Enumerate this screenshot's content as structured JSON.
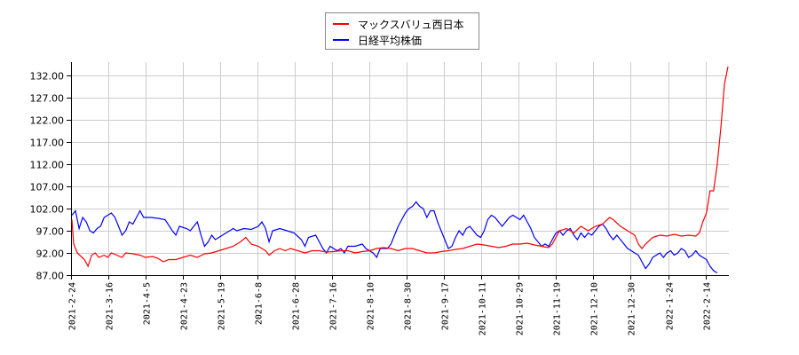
{
  "chart_data": {
    "type": "line",
    "title": "",
    "xlabel": "",
    "ylabel": "",
    "ylim": [
      87.0,
      134.0
    ],
    "y_ticks": [
      "87.00",
      "92.00",
      "97.00",
      "102.00",
      "107.00",
      "112.00",
      "117.00",
      "122.00",
      "127.00",
      "132.00"
    ],
    "x_ticks": [
      "2021-2-24",
      "2021-3-16",
      "2021-4-5",
      "2021-4-23",
      "2021-5-19",
      "2021-6-8",
      "2021-6-28",
      "2021-7-16",
      "2021-8-10",
      "2021-8-30",
      "2021-9-17",
      "2021-10-11",
      "2021-10-29",
      "2021-11-19",
      "2021-12-10",
      "2021-12-30",
      "2022-1-24",
      "2022-2-14"
    ],
    "grid": true,
    "legend_position": "top-center",
    "series": [
      {
        "name": "マックスバリュ西日本",
        "color": "#ff0000",
        "points": [
          [
            0,
            99.5
          ],
          [
            1,
            94
          ],
          [
            3,
            92
          ],
          [
            7,
            90.5
          ],
          [
            9,
            89
          ],
          [
            11,
            91.5
          ],
          [
            13,
            92
          ],
          [
            15,
            91
          ],
          [
            18,
            91.5
          ],
          [
            20,
            91
          ],
          [
            22,
            92
          ],
          [
            25,
            91.5
          ],
          [
            28,
            91
          ],
          [
            30,
            92
          ],
          [
            34,
            91.8
          ],
          [
            38,
            91.5
          ],
          [
            41,
            91
          ],
          [
            45,
            91.2
          ],
          [
            48,
            90.8
          ],
          [
            51,
            90
          ],
          [
            54,
            90.5
          ],
          [
            58,
            90.5
          ],
          [
            62,
            91
          ],
          [
            66,
            91.5
          ],
          [
            70,
            91
          ],
          [
            74,
            91.8
          ],
          [
            78,
            92
          ],
          [
            82,
            92.5
          ],
          [
            86,
            93
          ],
          [
            90,
            93.5
          ],
          [
            94,
            94.5
          ],
          [
            97,
            95.5
          ],
          [
            100,
            94
          ],
          [
            104,
            93.5
          ],
          [
            108,
            92.5
          ],
          [
            110,
            91.5
          ],
          [
            113,
            92.5
          ],
          [
            116,
            93
          ],
          [
            119,
            92.5
          ],
          [
            122,
            93
          ],
          [
            126,
            92.5
          ],
          [
            130,
            92
          ],
          [
            134,
            92.5
          ],
          [
            138,
            92.5
          ],
          [
            142,
            92.2
          ],
          [
            146,
            92.3
          ],
          [
            150,
            92.5
          ],
          [
            154,
            92.5
          ],
          [
            158,
            92
          ],
          [
            162,
            92.3
          ],
          [
            166,
            92.5
          ],
          [
            170,
            93
          ],
          [
            174,
            93.2
          ],
          [
            178,
            93
          ],
          [
            182,
            92.5
          ],
          [
            186,
            93
          ],
          [
            190,
            93
          ],
          [
            194,
            92.5
          ],
          [
            198,
            92
          ],
          [
            202,
            92
          ],
          [
            206,
            92.3
          ],
          [
            210,
            92.5
          ],
          [
            214,
            92.8
          ],
          [
            218,
            93
          ],
          [
            222,
            93.5
          ],
          [
            226,
            94
          ],
          [
            230,
            93.8
          ],
          [
            234,
            93.5
          ],
          [
            238,
            93.2
          ],
          [
            242,
            93.5
          ],
          [
            246,
            94
          ],
          [
            250,
            94
          ],
          [
            254,
            94.2
          ],
          [
            258,
            93.8
          ],
          [
            262,
            93.5
          ],
          [
            266,
            93.2
          ],
          [
            268,
            94
          ],
          [
            272,
            97
          ],
          [
            276,
            97.5
          ],
          [
            280,
            96.5
          ],
          [
            284,
            98
          ],
          [
            288,
            97
          ],
          [
            292,
            98
          ],
          [
            296,
            98.5
          ],
          [
            300,
            100
          ],
          [
            302,
            99.5
          ],
          [
            306,
            98
          ],
          [
            310,
            97
          ],
          [
            314,
            96
          ],
          [
            316,
            94
          ],
          [
            318,
            93
          ],
          [
            320,
            94
          ],
          [
            324,
            95.5
          ],
          [
            328,
            96
          ],
          [
            332,
            95.8
          ],
          [
            336,
            96.2
          ],
          [
            340,
            95.8
          ],
          [
            344,
            96
          ],
          [
            348,
            95.8
          ],
          [
            350,
            96.5
          ],
          [
            352,
            99
          ],
          [
            354,
            101
          ],
          [
            356,
            106
          ],
          [
            358,
            106
          ],
          [
            360,
            112
          ],
          [
            362,
            120
          ],
          [
            364,
            130
          ],
          [
            366,
            134
          ]
        ]
      },
      {
        "name": "日経平均株価",
        "color": "#0000ff",
        "points": [
          [
            0,
            100.5
          ],
          [
            2,
            101.5
          ],
          [
            4,
            97.5
          ],
          [
            6,
            100
          ],
          [
            8,
            99
          ],
          [
            10,
            97
          ],
          [
            12,
            96.5
          ],
          [
            14,
            97.5
          ],
          [
            16,
            98
          ],
          [
            18,
            100
          ],
          [
            20,
            100.5
          ],
          [
            22,
            101
          ],
          [
            24,
            100
          ],
          [
            26,
            98
          ],
          [
            28,
            96
          ],
          [
            30,
            97
          ],
          [
            32,
            99
          ],
          [
            34,
            98.5
          ],
          [
            36,
            100
          ],
          [
            38,
            101.5
          ],
          [
            40,
            100
          ],
          [
            44,
            100
          ],
          [
            48,
            99.8
          ],
          [
            52,
            99.5
          ],
          [
            56,
            97
          ],
          [
            58,
            96
          ],
          [
            60,
            98
          ],
          [
            64,
            97.5
          ],
          [
            66,
            97
          ],
          [
            68,
            98
          ],
          [
            70,
            99
          ],
          [
            72,
            96
          ],
          [
            74,
            93.5
          ],
          [
            76,
            94.5
          ],
          [
            78,
            96
          ],
          [
            80,
            95
          ],
          [
            82,
            95.5
          ],
          [
            86,
            96.5
          ],
          [
            88,
            97
          ],
          [
            90,
            97.5
          ],
          [
            92,
            97
          ],
          [
            96,
            97.5
          ],
          [
            100,
            97.3
          ],
          [
            104,
            98
          ],
          [
            106,
            99
          ],
          [
            108,
            97.5
          ],
          [
            110,
            94.5
          ],
          [
            112,
            97
          ],
          [
            116,
            97.5
          ],
          [
            120,
            97
          ],
          [
            124,
            96.5
          ],
          [
            128,
            95
          ],
          [
            130,
            93.5
          ],
          [
            132,
            95.5
          ],
          [
            136,
            96
          ],
          [
            140,
            93
          ],
          [
            142,
            92
          ],
          [
            144,
            93.5
          ],
          [
            148,
            92.5
          ],
          [
            150,
            93
          ],
          [
            152,
            92
          ],
          [
            154,
            93.5
          ],
          [
            158,
            93.5
          ],
          [
            162,
            94
          ],
          [
            164,
            93
          ],
          [
            168,
            92
          ],
          [
            170,
            91
          ],
          [
            172,
            93
          ],
          [
            176,
            93
          ],
          [
            178,
            94
          ],
          [
            180,
            96
          ],
          [
            182,
            98
          ],
          [
            184,
            99.5
          ],
          [
            186,
            101
          ],
          [
            188,
            102
          ],
          [
            190,
            102.5
          ],
          [
            192,
            103.5
          ],
          [
            194,
            102.5
          ],
          [
            196,
            102
          ],
          [
            198,
            100
          ],
          [
            200,
            101.5
          ],
          [
            202,
            101.5
          ],
          [
            204,
            99
          ],
          [
            206,
            97
          ],
          [
            208,
            95
          ],
          [
            210,
            93
          ],
          [
            212,
            93.5
          ],
          [
            214,
            95.5
          ],
          [
            216,
            97
          ],
          [
            218,
            96
          ],
          [
            220,
            97.5
          ],
          [
            222,
            98
          ],
          [
            224,
            97
          ],
          [
            226,
            96
          ],
          [
            228,
            95.5
          ],
          [
            230,
            97
          ],
          [
            232,
            99.5
          ],
          [
            234,
            100.5
          ],
          [
            236,
            100
          ],
          [
            238,
            99
          ],
          [
            240,
            98
          ],
          [
            242,
            99
          ],
          [
            244,
            100
          ],
          [
            246,
            100.5
          ],
          [
            248,
            100
          ],
          [
            250,
            99.5
          ],
          [
            252,
            100.5
          ],
          [
            254,
            99
          ],
          [
            256,
            97.5
          ],
          [
            258,
            95.5
          ],
          [
            260,
            94.5
          ],
          [
            262,
            93.5
          ],
          [
            264,
            94
          ],
          [
            266,
            93.5
          ],
          [
            268,
            95
          ],
          [
            270,
            96.5
          ],
          [
            272,
            97
          ],
          [
            274,
            96
          ],
          [
            276,
            97
          ],
          [
            278,
            97.5
          ],
          [
            280,
            96
          ],
          [
            282,
            95
          ],
          [
            284,
            96.5
          ],
          [
            286,
            95.5
          ],
          [
            288,
            96.5
          ],
          [
            290,
            96
          ],
          [
            292,
            97
          ],
          [
            294,
            98
          ],
          [
            296,
            98.5
          ],
          [
            298,
            97.5
          ],
          [
            300,
            96
          ],
          [
            302,
            95
          ],
          [
            304,
            96
          ],
          [
            306,
            95
          ],
          [
            308,
            94
          ],
          [
            310,
            93
          ],
          [
            312,
            92.5
          ],
          [
            316,
            91.5
          ],
          [
            318,
            90
          ],
          [
            320,
            88.5
          ],
          [
            322,
            89.5
          ],
          [
            324,
            91
          ],
          [
            326,
            91.5
          ],
          [
            328,
            92
          ],
          [
            330,
            91
          ],
          [
            332,
            92
          ],
          [
            334,
            92.5
          ],
          [
            336,
            91.5
          ],
          [
            338,
            92
          ],
          [
            340,
            93
          ],
          [
            342,
            92.5
          ],
          [
            344,
            91
          ],
          [
            346,
            91.5
          ],
          [
            348,
            92.5
          ],
          [
            350,
            91.5
          ],
          [
            352,
            91
          ],
          [
            354,
            90.5
          ],
          [
            356,
            89
          ],
          [
            358,
            88
          ],
          [
            360,
            87.5
          ]
        ]
      }
    ]
  },
  "legend": {
    "items": [
      {
        "label": "マックスバリュ西日本",
        "color": "#ff0000"
      },
      {
        "label": "日経平均株価",
        "color": "#0000ff"
      }
    ]
  }
}
